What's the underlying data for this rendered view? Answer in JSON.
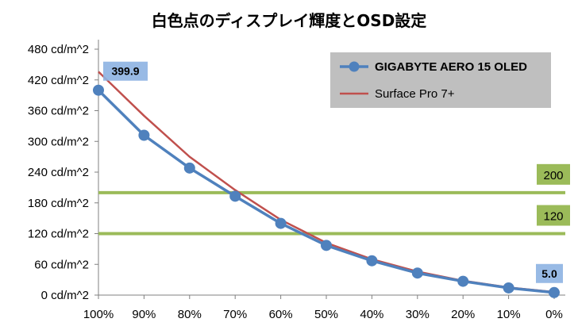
{
  "chart_data": {
    "type": "line",
    "title": "白色点のディスプレイ輝度とOSD設定",
    "xlabel": "",
    "ylabel": "",
    "categories": [
      "100%",
      "90%",
      "80%",
      "70%",
      "60%",
      "50%",
      "40%",
      "30%",
      "20%",
      "10%",
      "0%"
    ],
    "y_ticks": [
      "0 cd/m^2",
      "60 cd/m^2",
      "120 cd/m^2",
      "180 cd/m^2",
      "240 cd/m^2",
      "300 cd/m^2",
      "360 cd/m^2",
      "420 cd/m^2",
      "480 cd/m^2"
    ],
    "ylim": [
      0,
      480
    ],
    "grid": false,
    "legend_position": "top-right",
    "series": [
      {
        "name": "GIGABYTE AERO 15 OLED",
        "color": "#4f81bd",
        "marker": "circle",
        "values": [
          399.9,
          312,
          248,
          193,
          140,
          97,
          67,
          43,
          27,
          14,
          5.0
        ]
      },
      {
        "name": "Surface Pro 7+",
        "color": "#c0504d",
        "marker": "none",
        "values": [
          436,
          350,
          270,
          205,
          147,
          102,
          70,
          46,
          28,
          15,
          6
        ]
      }
    ],
    "data_labels": [
      {
        "series": 0,
        "index": 0,
        "text": "399.9"
      },
      {
        "series": 0,
        "index": 10,
        "text": "5.0"
      }
    ],
    "reference_lines": [
      {
        "value": 200,
        "label": "200",
        "color": "#9bbb59"
      },
      {
        "value": 120,
        "label": "120",
        "color": "#9bbb59"
      }
    ]
  }
}
